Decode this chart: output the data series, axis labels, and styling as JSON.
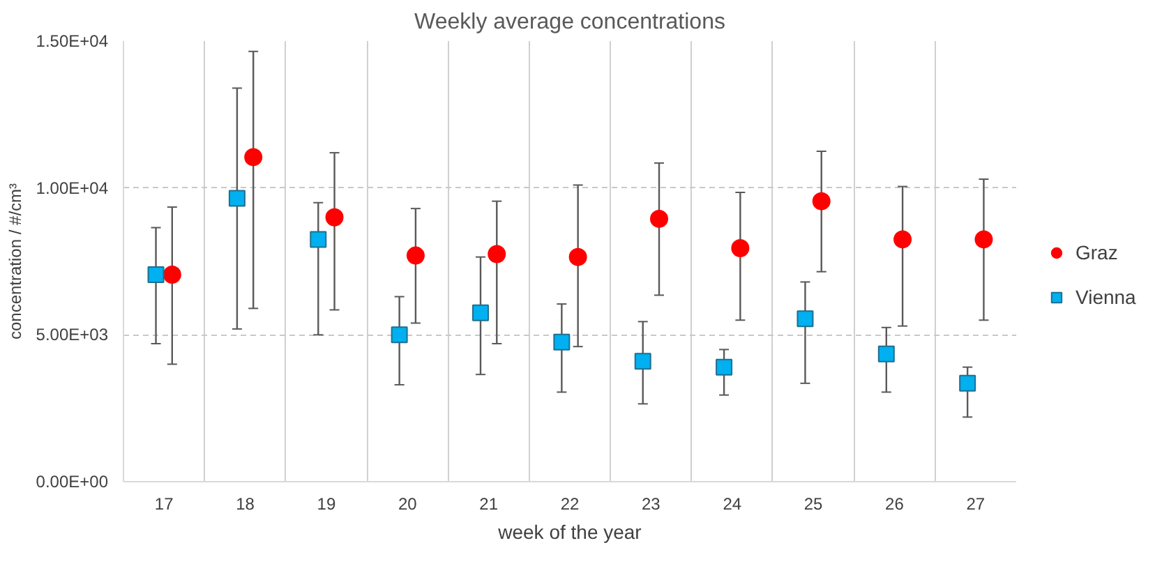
{
  "chart_data": {
    "type": "scatter",
    "title": "Weekly average concentrations",
    "xlabel": "week of the year",
    "ylabel": "concentration / #/cm³",
    "categories": [
      "17",
      "18",
      "19",
      "20",
      "21",
      "22",
      "23",
      "24",
      "25",
      "26",
      "27"
    ],
    "ylim": [
      0,
      15000
    ],
    "yticks": [
      {
        "value": 0,
        "label": "0.00E+00"
      },
      {
        "value": 5000,
        "label": "5.00E+03"
      },
      {
        "value": 10000,
        "label": "1.00E+04"
      },
      {
        "value": 15000,
        "label": "1.50E+04"
      }
    ],
    "grid": true,
    "legend": "right",
    "series": [
      {
        "name": "Graz",
        "color": "#ff0000",
        "marker": "circle",
        "values": [
          7050,
          11050,
          9000,
          7700,
          7750,
          7650,
          8950,
          7950,
          9550,
          8250,
          8250
        ],
        "errors": [
          [
            4000,
            9350
          ],
          [
            5900,
            14650
          ],
          [
            5850,
            11200
          ],
          [
            5400,
            9300
          ],
          [
            4700,
            9550
          ],
          [
            4600,
            10100
          ],
          [
            6350,
            10850
          ],
          [
            5500,
            9850
          ],
          [
            7150,
            11250
          ],
          [
            5300,
            10050
          ],
          [
            5500,
            10300
          ]
        ]
      },
      {
        "name": "Vienna",
        "color": "#00b0f0",
        "marker": "square",
        "values": [
          7050,
          9650,
          8250,
          5000,
          5750,
          4750,
          4100,
          3900,
          5550,
          4350,
          3350
        ],
        "errors": [
          [
            4700,
            8650
          ],
          [
            5200,
            13400
          ],
          [
            5000,
            9500
          ],
          [
            3300,
            6300
          ],
          [
            3650,
            7650
          ],
          [
            3050,
            6050
          ],
          [
            2650,
            5450
          ],
          [
            2950,
            4500
          ],
          [
            3350,
            6800
          ],
          [
            3050,
            5250
          ],
          [
            2200,
            3900
          ]
        ]
      }
    ]
  }
}
